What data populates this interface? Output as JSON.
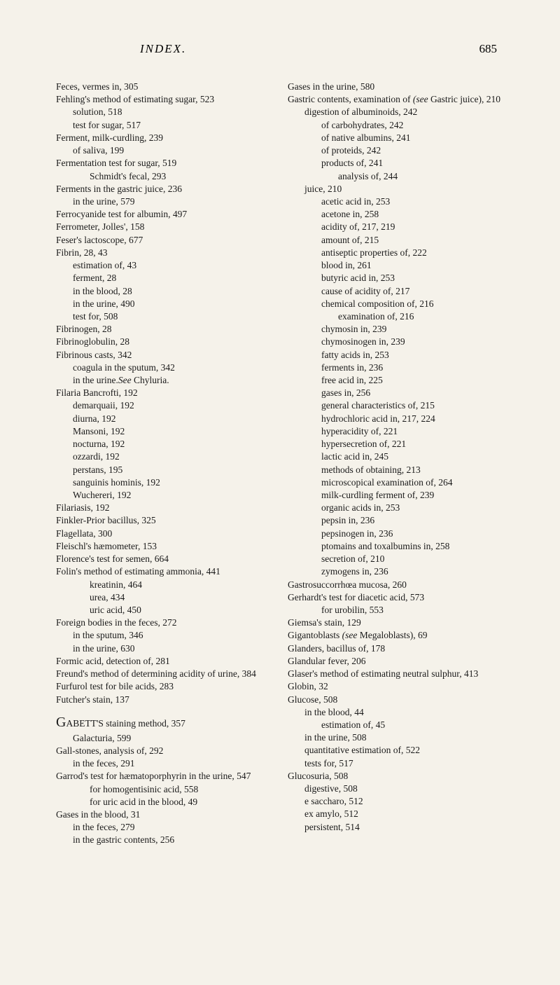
{
  "header": {
    "title": "INDEX.",
    "page": "685"
  },
  "leftColumn": [
    {
      "cls": "entry",
      "text": "Feces, vermes in, 305"
    },
    {
      "cls": "entry",
      "text": "Fehling's method of estimating sugar, 523"
    },
    {
      "cls": "sub1",
      "text": "solution, 518"
    },
    {
      "cls": "sub1",
      "text": "test for sugar, 517"
    },
    {
      "cls": "entry",
      "text": "Ferment, milk-curdling, 239"
    },
    {
      "cls": "sub1",
      "text": "of saliva, 199"
    },
    {
      "cls": "entry",
      "text": "Fermentation test for sugar, 519"
    },
    {
      "cls": "sub2",
      "text": "Schmidt's fecal, 293"
    },
    {
      "cls": "entry",
      "text": "Ferments in the gastric juice, 236"
    },
    {
      "cls": "sub1",
      "text": "in the urine, 579"
    },
    {
      "cls": "entry",
      "text": "Ferrocyanide test for albumin, 497"
    },
    {
      "cls": "entry",
      "text": "Ferrometer, Jolles', 158"
    },
    {
      "cls": "entry",
      "text": "Feser's lactoscope, 677"
    },
    {
      "cls": "entry",
      "text": "Fibrin, 28, 43"
    },
    {
      "cls": "sub1",
      "text": "estimation of, 43"
    },
    {
      "cls": "sub1",
      "text": "ferment, 28"
    },
    {
      "cls": "sub1",
      "text": "in the blood, 28"
    },
    {
      "cls": "sub1",
      "text": "in the urine, 490"
    },
    {
      "cls": "sub1",
      "text": "test for, 508"
    },
    {
      "cls": "entry",
      "text": "Fibrinogen, 28"
    },
    {
      "cls": "entry",
      "text": "Fibrinoglobulin, 28"
    },
    {
      "cls": "entry",
      "text": "Fibrinous casts, 342"
    },
    {
      "cls": "sub1",
      "text": "coagula in the sputum, 342"
    },
    {
      "cls": "sub1",
      "text": "in the urine.",
      "see": "See",
      "seeText": " Chyluria."
    },
    {
      "cls": "entry",
      "text": "Filaria Bancrofti, 192"
    },
    {
      "cls": "sub1",
      "text": "demarquaii, 192"
    },
    {
      "cls": "sub1",
      "text": "diurna, 192"
    },
    {
      "cls": "sub1",
      "text": "Mansoni, 192"
    },
    {
      "cls": "sub1",
      "text": "nocturna, 192"
    },
    {
      "cls": "sub1",
      "text": "ozzardi, 192"
    },
    {
      "cls": "sub1",
      "text": "perstans, 195"
    },
    {
      "cls": "sub1",
      "text": "sanguinis hominis, 192"
    },
    {
      "cls": "sub1",
      "text": "Wuchereri, 192"
    },
    {
      "cls": "entry",
      "text": "Filariasis, 192"
    },
    {
      "cls": "entry",
      "text": "Finkler-Prior bacillus, 325"
    },
    {
      "cls": "entry",
      "text": "Flagellata, 300"
    },
    {
      "cls": "entry",
      "text": "Fleischl's hæmometer, 153"
    },
    {
      "cls": "entry",
      "text": "Florence's test for semen, 664"
    },
    {
      "cls": "entry",
      "text": "Folin's method of estimating ammonia, 441"
    },
    {
      "cls": "sub2",
      "text": "kreatinin, 464"
    },
    {
      "cls": "sub2",
      "text": "urea, 434"
    },
    {
      "cls": "sub2",
      "text": "uric acid, 450"
    },
    {
      "cls": "entry",
      "text": "Foreign bodies in the feces, 272"
    },
    {
      "cls": "sub1",
      "text": "in the sputum, 346"
    },
    {
      "cls": "sub1",
      "text": "in the urine, 630"
    },
    {
      "cls": "entry",
      "text": "Formic acid, detection of, 281"
    },
    {
      "cls": "entry",
      "text": "Freund's method of determining acidity of urine, 384"
    },
    {
      "cls": "entry",
      "text": "Furfurol test for bile acids, 283"
    },
    {
      "cls": "entry",
      "text": "Futcher's stain, 137"
    },
    {
      "cls": "entry section-gap",
      "text": "",
      "dropCap": "G",
      "dropCapText": "ABETT'S staining method, 357"
    },
    {
      "cls": "sub1",
      "text": "Galacturia, 599"
    },
    {
      "cls": "entry",
      "text": "Gall-stones, analysis of, 292"
    },
    {
      "cls": "sub1",
      "text": "in the feces, 291"
    },
    {
      "cls": "entry",
      "text": "Garrod's test for hæmatoporphyrin in the urine, 547"
    },
    {
      "cls": "sub2",
      "text": "for homogentisinic acid, 558"
    },
    {
      "cls": "sub2",
      "text": "for uric acid in the blood, 49"
    },
    {
      "cls": "entry",
      "text": "Gases in the blood, 31"
    },
    {
      "cls": "sub1",
      "text": "in the feces, 279"
    },
    {
      "cls": "sub1",
      "text": "in the gastric contents, 256"
    }
  ],
  "rightColumn": [
    {
      "cls": "entry",
      "text": "Gases in the urine, 580"
    },
    {
      "cls": "entry",
      "text": "Gastric contents, examination of ",
      "see": "(see",
      "seeText": " Gastric juice), 210"
    },
    {
      "cls": "sub1",
      "text": "digestion of albuminoids, 242"
    },
    {
      "cls": "sub2",
      "text": "of carbohydrates, 242"
    },
    {
      "cls": "sub2",
      "text": "of native albumins, 241"
    },
    {
      "cls": "sub2",
      "text": "of proteids, 242"
    },
    {
      "cls": "sub2",
      "text": "products of, 241"
    },
    {
      "cls": "sub3",
      "text": "analysis of, 244"
    },
    {
      "cls": "sub1",
      "text": "juice, 210"
    },
    {
      "cls": "sub2",
      "text": "acetic acid in, 253"
    },
    {
      "cls": "sub2",
      "text": "acetone in, 258"
    },
    {
      "cls": "sub2",
      "text": "acidity of, 217, 219"
    },
    {
      "cls": "sub2",
      "text": "amount of, 215"
    },
    {
      "cls": "sub2",
      "text": "antiseptic properties of, 222"
    },
    {
      "cls": "sub2",
      "text": "blood in, 261"
    },
    {
      "cls": "sub2",
      "text": "butyric acid in, 253"
    },
    {
      "cls": "sub2",
      "text": "cause of acidity of, 217"
    },
    {
      "cls": "sub2",
      "text": "chemical composition of, 216"
    },
    {
      "cls": "sub3",
      "text": "examination of, 216"
    },
    {
      "cls": "sub2",
      "text": "chymosin in, 239"
    },
    {
      "cls": "sub2",
      "text": "chymosinogen in, 239"
    },
    {
      "cls": "sub2",
      "text": "fatty acids in, 253"
    },
    {
      "cls": "sub2",
      "text": "ferments in, 236"
    },
    {
      "cls": "sub2",
      "text": "free acid in, 225"
    },
    {
      "cls": "sub2",
      "text": "gases in, 256"
    },
    {
      "cls": "sub2",
      "text": "general characteristics of, 215"
    },
    {
      "cls": "sub2",
      "text": "hydrochloric acid in, 217, 224"
    },
    {
      "cls": "sub2",
      "text": "hyperacidity of, 221"
    },
    {
      "cls": "sub2",
      "text": "hypersecretion of, 221"
    },
    {
      "cls": "sub2",
      "text": "lactic acid in, 245"
    },
    {
      "cls": "sub2",
      "text": "methods of obtaining, 213"
    },
    {
      "cls": "sub2",
      "text": "microscopical examination of, 264"
    },
    {
      "cls": "sub2",
      "text": "milk-curdling ferment of, 239"
    },
    {
      "cls": "sub2",
      "text": "organic acids in, 253"
    },
    {
      "cls": "sub2",
      "text": "pepsin in, 236"
    },
    {
      "cls": "sub2",
      "text": "pepsinogen in, 236"
    },
    {
      "cls": "sub2",
      "text": "ptomains and toxalbumins in, 258"
    },
    {
      "cls": "sub2",
      "text": "secretion of, 210"
    },
    {
      "cls": "sub2",
      "text": "zymogens in, 236"
    },
    {
      "cls": "entry",
      "text": "Gastrosuccorrhœa mucosa, 260"
    },
    {
      "cls": "entry",
      "text": "Gerhardt's test for diacetic acid, 573"
    },
    {
      "cls": "sub2",
      "text": "for urobilin, 553"
    },
    {
      "cls": "entry",
      "text": "Giemsa's stain, 129"
    },
    {
      "cls": "entry",
      "text": "Gigantoblasts ",
      "see": "(see",
      "seeText": " Megaloblasts), 69"
    },
    {
      "cls": "entry",
      "text": "Glanders, bacillus of, 178"
    },
    {
      "cls": "entry",
      "text": "Glandular fever, 206"
    },
    {
      "cls": "entry",
      "text": "Glaser's method of estimating neutral sulphur, 413"
    },
    {
      "cls": "entry",
      "text": "Globin, 32"
    },
    {
      "cls": "entry",
      "text": "Glucose, 508"
    },
    {
      "cls": "sub1",
      "text": "in the blood, 44"
    },
    {
      "cls": "sub2",
      "text": "estimation of, 45"
    },
    {
      "cls": "sub1",
      "text": "in the urine, 508"
    },
    {
      "cls": "sub1",
      "text": "quantitative estimation of, 522"
    },
    {
      "cls": "sub1",
      "text": "tests for, 517"
    },
    {
      "cls": "entry",
      "text": "Glucosuria, 508"
    },
    {
      "cls": "sub1",
      "text": "digestive, 508"
    },
    {
      "cls": "sub1",
      "text": "e saccharo, 512"
    },
    {
      "cls": "sub1",
      "text": "ex amylo, 512"
    },
    {
      "cls": "sub1",
      "text": "persistent, 514"
    }
  ]
}
